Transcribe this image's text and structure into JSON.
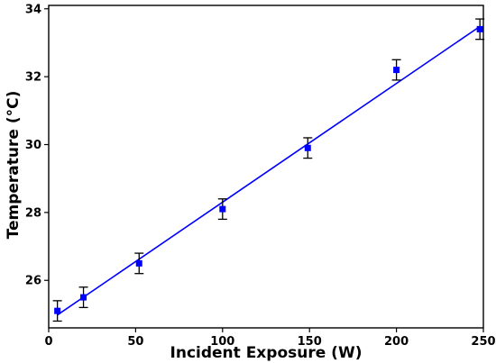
{
  "chart_data": {
    "type": "scatter",
    "title": "",
    "xlabel": "Incident Exposure (W)",
    "ylabel": "Temperature (°C)",
    "xlim": [
      0,
      250
    ],
    "ylim": [
      24.6,
      34.1
    ],
    "xticks": [
      0,
      50,
      100,
      150,
      200,
      250
    ],
    "yticks": [
      26,
      28,
      30,
      32,
      34
    ],
    "grid": false,
    "legend": "none",
    "series": [
      {
        "kind": "points_with_error",
        "marker": "square",
        "color": "#0000ff",
        "points": [
          {
            "x": 5,
            "y": 25.1,
            "err": 0.3
          },
          {
            "x": 20,
            "y": 25.5,
            "err": 0.3
          },
          {
            "x": 52,
            "y": 26.5,
            "err": 0.3
          },
          {
            "x": 100,
            "y": 28.1,
            "err": 0.3
          },
          {
            "x": 149,
            "y": 29.9,
            "err": 0.3
          },
          {
            "x": 200,
            "y": 32.2,
            "err": 0.3
          },
          {
            "x": 248,
            "y": 33.4,
            "err": 0.3
          }
        ]
      },
      {
        "kind": "fit_line",
        "color": "#0000ff",
        "x": [
          5,
          248
        ],
        "y": [
          24.98,
          33.48
        ]
      }
    ],
    "colors": {
      "marker": "#0000ff",
      "line": "#0000ff",
      "errorbar": "#000000",
      "axes": "#000000"
    }
  }
}
